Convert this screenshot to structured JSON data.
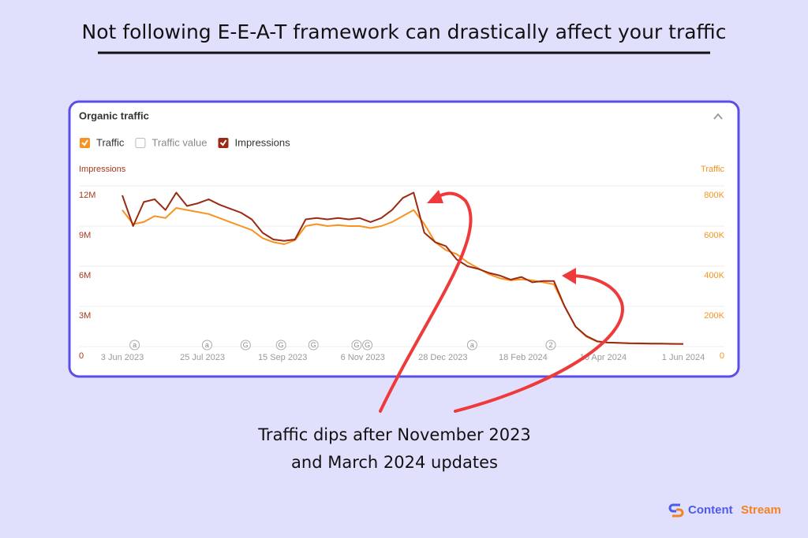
{
  "header": {
    "title": "Not following E-E-A-T framework can drastically affect your traffic"
  },
  "chart_data": {
    "type": "line",
    "title": "Organic traffic",
    "y_label": "Impressions",
    "y2_label": "Traffic",
    "x": [
      "2023-06-03",
      "2023-06-10",
      "2023-06-17",
      "2023-06-24",
      "2023-07-01",
      "2023-07-08",
      "2023-07-15",
      "2023-07-22",
      "2023-07-29",
      "2023-08-05",
      "2023-08-12",
      "2023-08-19",
      "2023-08-26",
      "2023-09-02",
      "2023-09-09",
      "2023-09-16",
      "2023-09-23",
      "2023-09-30",
      "2023-10-07",
      "2023-10-14",
      "2023-10-21",
      "2023-10-28",
      "2023-11-04",
      "2023-11-11",
      "2023-11-18",
      "2023-11-25",
      "2023-12-02",
      "2023-12-09",
      "2023-12-16",
      "2023-12-23",
      "2023-12-30",
      "2024-01-06",
      "2024-01-13",
      "2024-01-20",
      "2024-01-27",
      "2024-02-03",
      "2024-02-10",
      "2024-02-17",
      "2024-02-24",
      "2024-03-02",
      "2024-03-09",
      "2024-03-16",
      "2024-03-23",
      "2024-03-30",
      "2024-04-06",
      "2024-04-13",
      "2024-04-20",
      "2024-04-27",
      "2024-05-04",
      "2024-05-11",
      "2024-05-18",
      "2024-05-25",
      "2024-06-01"
    ],
    "xlim": [
      "2023-06-03",
      "2024-06-01"
    ],
    "xticks": [
      {
        "value": "2023-06-03",
        "label": "3 Jun 2023"
      },
      {
        "value": "2023-07-25",
        "label": "25 Jul 2023"
      },
      {
        "value": "2023-09-15",
        "label": "15 Sep 2023"
      },
      {
        "value": "2023-11-06",
        "label": "6 Nov 2023"
      },
      {
        "value": "2023-12-28",
        "label": "28 Dec 2023"
      },
      {
        "value": "2024-02-18",
        "label": "18 Feb 2024"
      },
      {
        "value": "2024-04-10",
        "label": "10 Apr 2024"
      },
      {
        "value": "2024-06-01",
        "label": "1 Jun 2024"
      }
    ],
    "ylim": [
      0,
      12000000
    ],
    "yticks": [
      0,
      {
        "value": 3000000,
        "label": "3M"
      },
      {
        "value": 6000000,
        "label": "6M"
      },
      {
        "value": 9000000,
        "label": "9M"
      },
      {
        "value": 12000000,
        "label": "12M"
      }
    ],
    "y2lim": [
      0,
      800000
    ],
    "y2ticks": [
      0,
      {
        "value": 200000,
        "label": "200K"
      },
      {
        "value": 400000,
        "label": "400K"
      },
      {
        "value": 600000,
        "label": "600K"
      },
      {
        "value": 800000,
        "label": "800K"
      }
    ],
    "grid": true,
    "series": [
      {
        "name": "Traffic",
        "color": "#f7931e",
        "checked": true,
        "axis": "y2",
        "values": [
          680000,
          610000,
          620000,
          650000,
          640000,
          690000,
          680000,
          670000,
          660000,
          640000,
          620000,
          600000,
          580000,
          540000,
          520000,
          510000,
          530000,
          600000,
          610000,
          600000,
          605000,
          600000,
          600000,
          590000,
          600000,
          620000,
          650000,
          680000,
          610000,
          520000,
          480000,
          460000,
          420000,
          390000,
          360000,
          340000,
          330000,
          335000,
          330000,
          320000,
          310000,
          200000,
          100000,
          50000,
          25000,
          20000,
          18000,
          16000,
          15000,
          15000,
          14000,
          14000,
          13000
        ]
      },
      {
        "name": "Traffic value",
        "color": "#bbbbbb",
        "checked": false,
        "values": [
          null,
          null,
          null,
          null,
          null,
          null,
          null,
          null,
          null,
          null,
          null,
          null,
          null,
          null,
          null,
          null,
          null,
          null,
          null,
          null,
          null,
          null,
          null,
          null,
          null,
          null,
          null,
          null,
          null,
          null,
          null,
          null,
          null,
          null,
          null,
          null,
          null,
          null,
          null,
          null,
          null,
          null,
          null,
          null,
          null,
          null,
          null,
          null,
          null,
          null,
          null,
          null,
          null
        ]
      },
      {
        "name": "Impressions",
        "color": "#9b2a14",
        "checked": true,
        "values": [
          11300000,
          9000000,
          10800000,
          11000000,
          10200000,
          11500000,
          10500000,
          10700000,
          11000000,
          10600000,
          10300000,
          10000000,
          9500000,
          8500000,
          8000000,
          7900000,
          8000000,
          9500000,
          9600000,
          9500000,
          9600000,
          9500000,
          9600000,
          9300000,
          9600000,
          10200000,
          11100000,
          11500000,
          8500000,
          7800000,
          7500000,
          6500000,
          6000000,
          5800000,
          5500000,
          5300000,
          5000000,
          5200000,
          4800000,
          4900000,
          4900000,
          3000000,
          1500000,
          800000,
          400000,
          300000,
          280000,
          250000,
          240000,
          220000,
          220000,
          200000,
          200000
        ]
      }
    ],
    "events": [
      {
        "x": "2023-06-11",
        "label": "a"
      },
      {
        "x": "2023-07-28",
        "label": "a"
      },
      {
        "x": "2023-08-22",
        "label": "G"
      },
      {
        "x": "2023-09-14",
        "label": "G"
      },
      {
        "x": "2023-10-05",
        "label": "G"
      },
      {
        "x": "2023-11-02",
        "label": "G"
      },
      {
        "x": "2023-11-09",
        "label": "G"
      },
      {
        "x": "2024-01-16",
        "label": "a"
      },
      {
        "x": "2024-03-07",
        "label": "2"
      }
    ]
  },
  "caption": [
    "Traffic dips after November 2023",
    "and March 2024 updates"
  ],
  "brand": {
    "first": "Content",
    "second": "Stream"
  }
}
